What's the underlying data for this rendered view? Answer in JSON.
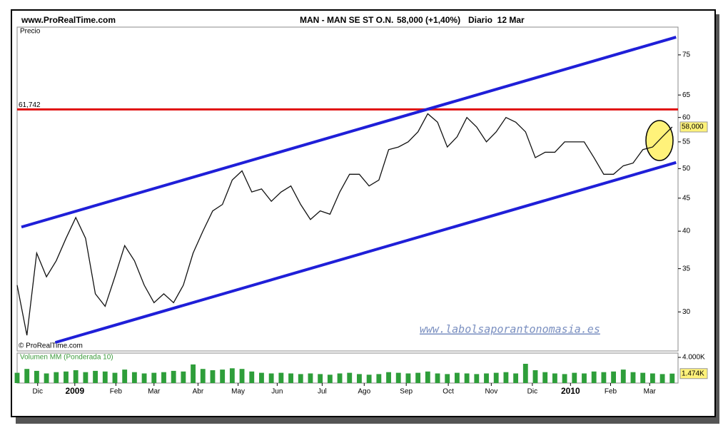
{
  "header": {
    "site": "www.ProRealTime.com",
    "instrument": "MAN - MAN SE ST O.N.",
    "quote": "58,000 (+1,40%)",
    "period": "Diario  12 Mar"
  },
  "chart_data": [
    {
      "type": "line",
      "y_label": "Precio",
      "copyright": "© ProRealTime.com",
      "watermark": "www.labolsaporantonomasia.es",
      "log": true,
      "color": "#111111",
      "x": [
        0,
        1,
        2,
        3,
        4,
        5,
        6,
        7,
        8,
        9,
        10,
        11,
        12,
        13,
        14,
        15,
        16,
        17,
        18,
        19,
        20,
        21,
        22,
        23,
        24,
        25,
        26,
        27,
        28,
        29,
        30,
        31,
        32,
        33,
        34,
        35,
        36,
        37,
        38,
        39,
        40,
        41,
        42,
        43,
        44,
        45,
        46,
        47,
        48,
        49,
        50,
        51,
        52,
        53,
        54,
        55,
        56,
        57,
        58,
        59,
        60,
        61,
        62,
        63,
        64,
        65,
        66,
        67
      ],
      "values": [
        33,
        27.6,
        37,
        34,
        36,
        39,
        42,
        39,
        32,
        30.6,
        34,
        38,
        36,
        33,
        31,
        32,
        31,
        33,
        37,
        40,
        43,
        44,
        48,
        49.6,
        46,
        46.5,
        44.5,
        46,
        47,
        44,
        41.7,
        43,
        42.5,
        46,
        49,
        49,
        47,
        48,
        53.5,
        54,
        55,
        57,
        60.8,
        59,
        54,
        56,
        60,
        58,
        55,
        57,
        60,
        59,
        57,
        52,
        53,
        53,
        55,
        55,
        55,
        52,
        49,
        49,
        50.5,
        51,
        53.5,
        54,
        56,
        58
      ],
      "xlim": [
        0,
        67.6
      ],
      "ylim": [
        26.1,
        82.8
      ],
      "yticks": [
        30,
        35,
        40,
        45,
        50,
        55,
        60,
        65,
        75
      ],
      "reference_lines": [
        {
          "value": 61.742,
          "label": "61,742",
          "color": "#e01010"
        }
      ],
      "trend_lines": [
        {
          "x": [
            0.44,
            67.4
          ],
          "y": [
            40.6,
            79.9
          ],
          "color": "#1f1fd8"
        },
        {
          "x": [
            3.9,
            67.4
          ],
          "y": [
            26.9,
            51.1
          ],
          "color": "#1f1fd8"
        }
      ],
      "last_value": {
        "value": 58,
        "label": "58,000"
      }
    },
    {
      "type": "bar",
      "title": "Volumen MM (Ponderada 10)",
      "color": "#2e9e3a",
      "x": [
        0,
        1,
        2,
        3,
        4,
        5,
        6,
        7,
        8,
        9,
        10,
        11,
        12,
        13,
        14,
        15,
        16,
        17,
        18,
        19,
        20,
        21,
        22,
        23,
        24,
        25,
        26,
        27,
        28,
        29,
        30,
        31,
        32,
        33,
        34,
        35,
        36,
        37,
        38,
        39,
        40,
        41,
        42,
        43,
        44,
        45,
        46,
        47,
        48,
        49,
        50,
        51,
        52,
        53,
        54,
        55,
        56,
        57,
        58,
        59,
        60,
        61,
        62,
        63,
        64,
        65,
        66,
        67
      ],
      "values": [
        1600,
        2200,
        1900,
        1500,
        1700,
        1800,
        2000,
        1700,
        1900,
        1800,
        1600,
        2100,
        1700,
        1500,
        1600,
        1700,
        1900,
        1800,
        2900,
        2200,
        2000,
        2100,
        2300,
        2200,
        1800,
        1600,
        1500,
        1600,
        1500,
        1400,
        1500,
        1400,
        1300,
        1500,
        1600,
        1400,
        1300,
        1400,
        1700,
        1600,
        1500,
        1600,
        1800,
        1500,
        1400,
        1600,
        1500,
        1400,
        1500,
        1600,
        1700,
        1500,
        3000,
        2000,
        1700,
        1500,
        1400,
        1600,
        1500,
        1800,
        1700,
        1800,
        2100,
        1700,
        1600,
        1500,
        1400,
        1474
      ],
      "xlim": [
        0,
        67.6
      ],
      "ylim": [
        0,
        4667
      ],
      "yticks": [
        {
          "value": 4000,
          "label": "4.000K"
        }
      ],
      "last_value": {
        "value": 1474,
        "label": "1.474K"
      },
      "xticks": [
        {
          "value": 2.1,
          "label": "Dic"
        },
        {
          "value": 5.9,
          "label": "2009"
        },
        {
          "value": 10.1,
          "label": "Feb"
        },
        {
          "value": 14.0,
          "label": "Mar"
        },
        {
          "value": 18.5,
          "label": "Abr"
        },
        {
          "value": 22.6,
          "label": "May"
        },
        {
          "value": 26.6,
          "label": "Jun"
        },
        {
          "value": 31.2,
          "label": "Jul"
        },
        {
          "value": 35.5,
          "label": "Ago"
        },
        {
          "value": 39.8,
          "label": "Sep"
        },
        {
          "value": 44.1,
          "label": "Oct"
        },
        {
          "value": 48.5,
          "label": "Nov"
        },
        {
          "value": 52.7,
          "label": "Dic"
        },
        {
          "value": 56.6,
          "label": "2010"
        },
        {
          "value": 60.7,
          "label": "Feb"
        },
        {
          "value": 64.7,
          "label": "Mar"
        }
      ]
    }
  ]
}
